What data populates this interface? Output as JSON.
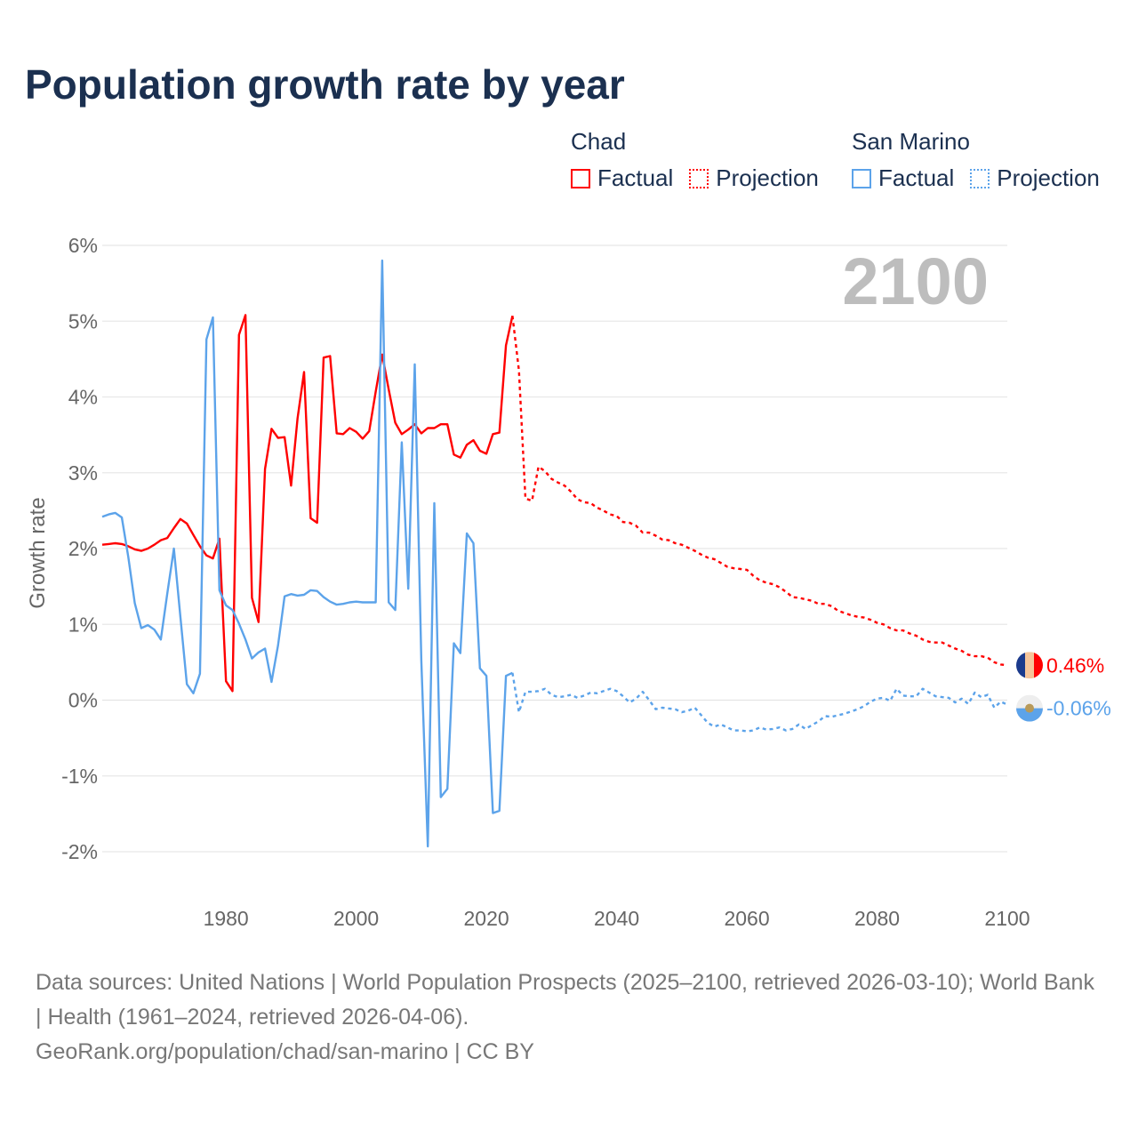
{
  "title": "Population growth rate by year",
  "legend": {
    "groups": [
      {
        "name": "Chad",
        "factual": "Factual",
        "projection": "Projection",
        "color": "#ff0000"
      },
      {
        "name": "San Marino",
        "factual": "Factual",
        "projection": "Projection",
        "color": "#5ca3ea"
      }
    ]
  },
  "footer": {
    "sources": "Data sources: United Nations | World Population Prospects (2025–2100, retrieved 2026-03-10); World Bank | Health (1961–2024, retrieved 2026-04-06).",
    "attribution": "GeoRank.org/population/chad/san-marino | CC BY"
  },
  "chart_data": {
    "type": "line",
    "title": "Population growth rate by year",
    "xlabel": "",
    "ylabel": "Growth rate",
    "xlim": [
      1961,
      2100
    ],
    "ylim": [
      -2,
      6
    ],
    "yticks": [
      -2,
      -1,
      0,
      1,
      2,
      3,
      4,
      5,
      6
    ],
    "ytick_labels": [
      "-2%",
      "-1%",
      "0%",
      "1%",
      "2%",
      "3%",
      "4%",
      "5%",
      "6%"
    ],
    "xticks": [
      1980,
      2000,
      2020,
      2040,
      2060,
      2080,
      2100
    ],
    "xtick_labels": [
      "1980",
      "2000",
      "2020",
      "2040",
      "2060",
      "2080",
      "2100"
    ],
    "grid": true,
    "year_label": "2100",
    "series": [
      {
        "name": "Chad Factual",
        "color": "#ff0000",
        "style": "solid",
        "start_year": 1961,
        "values": [
          2.05,
          2.06,
          2.07,
          2.06,
          2.03,
          1.99,
          1.97,
          2.0,
          2.05,
          2.11,
          2.14,
          2.27,
          2.39,
          2.33,
          2.18,
          2.03,
          1.91,
          1.87,
          2.13,
          0.25,
          0.12,
          4.82,
          5.08,
          1.35,
          1.03,
          3.05,
          3.58,
          3.46,
          3.47,
          2.83,
          3.72,
          4.33,
          2.4,
          2.34,
          4.52,
          4.54,
          3.52,
          3.51,
          3.59,
          3.54,
          3.45,
          3.55,
          4.07,
          4.56,
          4.1,
          3.66,
          3.51,
          3.57,
          3.64,
          3.52,
          3.59,
          3.59,
          3.64,
          3.64,
          3.24,
          3.2,
          3.37,
          3.43,
          3.29,
          3.25,
          3.51,
          3.53,
          4.68,
          5.07
        ]
      },
      {
        "name": "Chad Projection",
        "color": "#ff0000",
        "style": "dotted",
        "start_year": 2024,
        "values": [
          5.07,
          4.35,
          2.66,
          2.63,
          3.08,
          3.02,
          2.92,
          2.87,
          2.83,
          2.75,
          2.65,
          2.61,
          2.6,
          2.54,
          2.5,
          2.45,
          2.43,
          2.35,
          2.34,
          2.3,
          2.21,
          2.21,
          2.17,
          2.12,
          2.11,
          2.07,
          2.05,
          2.01,
          1.97,
          1.92,
          1.88,
          1.86,
          1.81,
          1.76,
          1.74,
          1.73,
          1.72,
          1.64,
          1.58,
          1.55,
          1.53,
          1.49,
          1.43,
          1.36,
          1.35,
          1.33,
          1.31,
          1.27,
          1.27,
          1.24,
          1.18,
          1.15,
          1.12,
          1.1,
          1.09,
          1.06,
          1.02,
          1.0,
          0.95,
          0.92,
          0.92,
          0.88,
          0.85,
          0.8,
          0.77,
          0.76,
          0.76,
          0.72,
          0.68,
          0.65,
          0.6,
          0.58,
          0.58,
          0.56,
          0.5,
          0.47,
          0.46
        ]
      },
      {
        "name": "San Marino Factual",
        "color": "#5ca3ea",
        "style": "solid",
        "start_year": 1961,
        "values": [
          2.42,
          2.45,
          2.47,
          2.41,
          1.89,
          1.28,
          0.95,
          0.99,
          0.93,
          0.8,
          1.41,
          2.0,
          1.1,
          0.21,
          0.09,
          0.35,
          4.76,
          5.05,
          1.45,
          1.25,
          1.19,
          1.01,
          0.8,
          0.55,
          0.63,
          0.68,
          0.24,
          0.72,
          1.37,
          1.4,
          1.38,
          1.39,
          1.45,
          1.44,
          1.36,
          1.3,
          1.26,
          1.27,
          1.29,
          1.3,
          1.29,
          1.29,
          1.29,
          5.8,
          1.29,
          1.19,
          3.4,
          1.47,
          4.43,
          0.52,
          -1.93,
          2.6,
          -1.28,
          -1.17,
          0.75,
          0.62,
          2.2,
          2.07,
          0.42,
          0.32,
          -1.49,
          -1.46,
          0.32,
          0.36
        ]
      },
      {
        "name": "San Marino Projection",
        "color": "#5ca3ea",
        "style": "dotted",
        "start_year": 2024,
        "values": [
          0.36,
          -0.16,
          0.11,
          0.11,
          0.12,
          0.15,
          0.07,
          0.04,
          0.05,
          0.07,
          0.03,
          0.06,
          0.1,
          0.09,
          0.12,
          0.15,
          0.12,
          0.05,
          -0.03,
          0.02,
          0.11,
          0.0,
          -0.12,
          -0.1,
          -0.11,
          -0.12,
          -0.16,
          -0.14,
          -0.1,
          -0.2,
          -0.3,
          -0.35,
          -0.32,
          -0.36,
          -0.4,
          -0.4,
          -0.41,
          -0.4,
          -0.36,
          -0.39,
          -0.38,
          -0.36,
          -0.4,
          -0.38,
          -0.32,
          -0.38,
          -0.33,
          -0.28,
          -0.21,
          -0.22,
          -0.2,
          -0.18,
          -0.15,
          -0.12,
          -0.08,
          -0.02,
          0.02,
          0.03,
          -0.01,
          0.15,
          0.06,
          0.05,
          0.05,
          0.15,
          0.1,
          0.05,
          0.04,
          0.03,
          -0.03,
          0.02,
          -0.05,
          0.1,
          0.04,
          0.07,
          -0.1,
          -0.02,
          -0.06
        ]
      }
    ],
    "end_labels": [
      {
        "country": "Chad",
        "text": "0.46%",
        "value": 0.46,
        "color": "#ff0000"
      },
      {
        "country": "San Marino",
        "text": "-0.06%",
        "value": -0.06,
        "color": "#5ca3ea"
      }
    ]
  }
}
